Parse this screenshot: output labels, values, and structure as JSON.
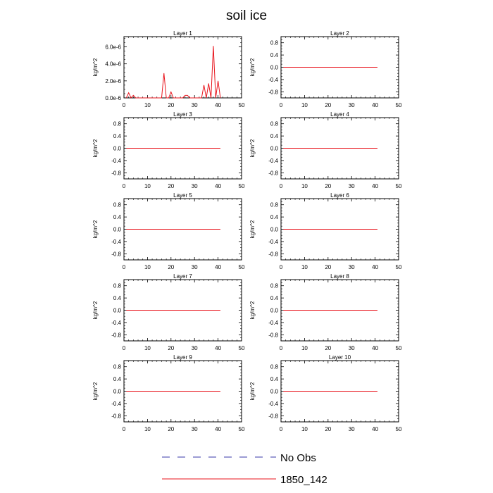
{
  "title": "soil ice",
  "colors": {
    "model_line": "#e8141c",
    "obs_line": "#3a3aa8",
    "axis": "#000000"
  },
  "legend": [
    {
      "label": "No Obs",
      "style": "dashed",
      "color": "#3a3aa8"
    },
    {
      "label": "1850_142",
      "style": "solid",
      "color": "#e8141c"
    }
  ],
  "chart_data": [
    {
      "type": "line",
      "title": "Layer 1",
      "ylabel": "kg/m^2",
      "xlabel": "",
      "xlim": [
        0,
        50
      ],
      "ylim": [
        0,
        7.2e-06
      ],
      "xticks": [
        0,
        10,
        20,
        30,
        40,
        50
      ],
      "yticks": [
        0,
        2e-06,
        4e-06,
        6e-06
      ],
      "ytick_labels": [
        "0.0e-6",
        "2.0e-6",
        "4.0e-6",
        "6.0e-6"
      ],
      "series": [
        {
          "name": "1850_142",
          "x": [
            1,
            2,
            3,
            4,
            5,
            6,
            7,
            8,
            9,
            10,
            11,
            12,
            13,
            14,
            15,
            16,
            17,
            18,
            19,
            20,
            21,
            22,
            23,
            24,
            25,
            26,
            27,
            28,
            29,
            30,
            31,
            32,
            33,
            34,
            35,
            36,
            37,
            38,
            39,
            40,
            41
          ],
          "y": [
            0,
            6e-07,
            0,
            3e-07,
            0,
            0,
            0,
            0,
            0,
            0,
            0,
            0,
            0,
            0,
            0,
            0,
            2.9e-06,
            0,
            0,
            7e-07,
            0,
            0,
            0,
            0,
            0,
            3e-07,
            3e-07,
            0,
            0,
            0,
            0,
            0,
            0,
            1.5e-06,
            0,
            1.7e-06,
            0,
            6.1e-06,
            0,
            2e-06,
            0
          ]
        }
      ]
    },
    {
      "type": "line",
      "title": "Layer 2",
      "ylabel": "kg/m^2",
      "xlim": [
        0,
        50
      ],
      "ylim": [
        -1,
        1
      ],
      "xticks": [
        0,
        10,
        20,
        30,
        40,
        50
      ],
      "yticks": [
        -0.8,
        -0.4,
        0,
        0.4,
        0.8
      ],
      "ytick_labels": [
        "-0.8",
        "-0.4",
        "0.0",
        "0.4",
        "0.8"
      ],
      "series": [
        {
          "name": "1850_142",
          "x": [
            1,
            41
          ],
          "y": [
            0,
            0
          ]
        }
      ]
    },
    {
      "type": "line",
      "title": "Layer 3",
      "ylabel": "kg/m^2",
      "xlim": [
        0,
        50
      ],
      "ylim": [
        -1,
        1
      ],
      "xticks": [
        0,
        10,
        20,
        30,
        40,
        50
      ],
      "yticks": [
        -0.8,
        -0.4,
        0,
        0.4,
        0.8
      ],
      "ytick_labels": [
        "-0.8",
        "-0.4",
        "0.0",
        "0.4",
        "0.8"
      ],
      "series": [
        {
          "name": "1850_142",
          "x": [
            1,
            41
          ],
          "y": [
            0,
            0
          ]
        }
      ]
    },
    {
      "type": "line",
      "title": "Layer 4",
      "ylabel": "kg/m^2",
      "xlim": [
        0,
        50
      ],
      "ylim": [
        -1,
        1
      ],
      "xticks": [
        0,
        10,
        20,
        30,
        40,
        50
      ],
      "yticks": [
        -0.8,
        -0.4,
        0,
        0.4,
        0.8
      ],
      "ytick_labels": [
        "-0.8",
        "-0.4",
        "0.0",
        "0.4",
        "0.8"
      ],
      "series": [
        {
          "name": "1850_142",
          "x": [
            1,
            41
          ],
          "y": [
            0,
            0
          ]
        }
      ]
    },
    {
      "type": "line",
      "title": "Layer 5",
      "ylabel": "kg/m^2",
      "xlim": [
        0,
        50
      ],
      "ylim": [
        -1,
        1
      ],
      "xticks": [
        0,
        10,
        20,
        30,
        40,
        50
      ],
      "yticks": [
        -0.8,
        -0.4,
        0,
        0.4,
        0.8
      ],
      "ytick_labels": [
        "-0.8",
        "-0.4",
        "0.0",
        "0.4",
        "0.8"
      ],
      "series": [
        {
          "name": "1850_142",
          "x": [
            1,
            41
          ],
          "y": [
            0,
            0
          ]
        }
      ]
    },
    {
      "type": "line",
      "title": "Layer 6",
      "ylabel": "kg/m^2",
      "xlim": [
        0,
        50
      ],
      "ylim": [
        -1,
        1
      ],
      "xticks": [
        0,
        10,
        20,
        30,
        40,
        50
      ],
      "yticks": [
        -0.8,
        -0.4,
        0,
        0.4,
        0.8
      ],
      "ytick_labels": [
        "-0.8",
        "-0.4",
        "0.0",
        "0.4",
        "0.8"
      ],
      "series": [
        {
          "name": "1850_142",
          "x": [
            1,
            41
          ],
          "y": [
            0,
            0
          ]
        }
      ]
    },
    {
      "type": "line",
      "title": "Layer 7",
      "ylabel": "kg/m^2",
      "xlim": [
        0,
        50
      ],
      "ylim": [
        -1,
        1
      ],
      "xticks": [
        0,
        10,
        20,
        30,
        40,
        50
      ],
      "yticks": [
        -0.8,
        -0.4,
        0,
        0.4,
        0.8
      ],
      "ytick_labels": [
        "-0.8",
        "-0.4",
        "0.0",
        "0.4",
        "0.8"
      ],
      "series": [
        {
          "name": "1850_142",
          "x": [
            1,
            41
          ],
          "y": [
            0,
            0
          ]
        }
      ]
    },
    {
      "type": "line",
      "title": "Layer 8",
      "ylabel": "kg/m^2",
      "xlim": [
        0,
        50
      ],
      "ylim": [
        -1,
        1
      ],
      "xticks": [
        0,
        10,
        20,
        30,
        40,
        50
      ],
      "yticks": [
        -0.8,
        -0.4,
        0,
        0.4,
        0.8
      ],
      "ytick_labels": [
        "-0.8",
        "-0.4",
        "0.0",
        "0.4",
        "0.8"
      ],
      "series": [
        {
          "name": "1850_142",
          "x": [
            1,
            41
          ],
          "y": [
            0,
            0
          ]
        }
      ]
    },
    {
      "type": "line",
      "title": "Layer 9",
      "ylabel": "kg/m^2",
      "xlim": [
        0,
        50
      ],
      "ylim": [
        -1,
        1
      ],
      "xticks": [
        0,
        10,
        20,
        30,
        40,
        50
      ],
      "yticks": [
        -0.8,
        -0.4,
        0,
        0.4,
        0.8
      ],
      "ytick_labels": [
        "-0.8",
        "-0.4",
        "0.0",
        "0.4",
        "0.8"
      ],
      "series": [
        {
          "name": "1850_142",
          "x": [
            1,
            41
          ],
          "y": [
            0,
            0
          ]
        }
      ]
    },
    {
      "type": "line",
      "title": "Layer 10",
      "ylabel": "kg/m^2",
      "xlim": [
        0,
        50
      ],
      "ylim": [
        -1,
        1
      ],
      "xticks": [
        0,
        10,
        20,
        30,
        40,
        50
      ],
      "yticks": [
        -0.8,
        -0.4,
        0,
        0.4,
        0.8
      ],
      "ytick_labels": [
        "-0.8",
        "-0.4",
        "0.0",
        "0.4",
        "0.8"
      ],
      "series": [
        {
          "name": "1850_142",
          "x": [
            1,
            41
          ],
          "y": [
            0,
            0
          ]
        }
      ]
    }
  ]
}
